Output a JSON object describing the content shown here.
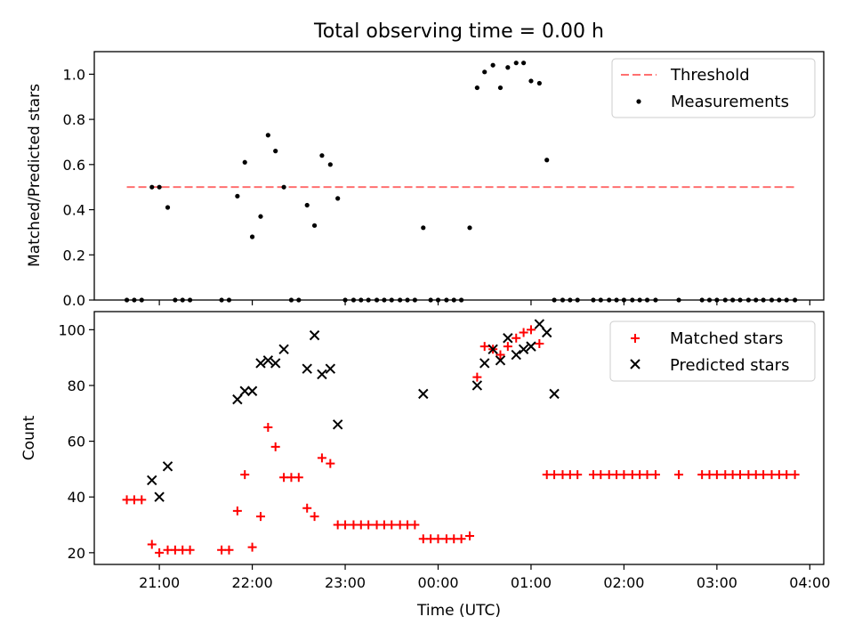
{
  "title": "Total observing time = 0.00 h",
  "xlabel": "Time (UTC)",
  "colors": {
    "threshold": "#ff7070",
    "measurement": "#000000",
    "matched": "#ff0000",
    "predicted": "#000000"
  },
  "chart_data": [
    {
      "type": "scatter",
      "panel": "top",
      "ylabel": "Matched/Predicted stars",
      "xlim": [
        20.3,
        28.15
      ],
      "ylim": [
        0,
        1.1
      ],
      "x_unit": "hours UTC since 20:00 of first night (24 = 00:00)",
      "yticks": [
        "0.0",
        "0.2",
        "0.4",
        "0.6",
        "0.8",
        "1.0"
      ],
      "legend": {
        "placement": "top-right",
        "entries": [
          "Threshold",
          "Measurements"
        ]
      },
      "threshold": {
        "name": "Threshold",
        "y": 0.5,
        "x_range": [
          20.65,
          27.85
        ]
      },
      "series": [
        {
          "name": "Measurements",
          "x": [
            20.65,
            20.73,
            20.81,
            20.92,
            21.0,
            21.09,
            21.17,
            21.25,
            21.33,
            21.67,
            21.75,
            21.84,
            21.92,
            22.0,
            22.09,
            22.17,
            22.25,
            22.34,
            22.42,
            22.5,
            22.59,
            22.67,
            22.75,
            22.84,
            22.92,
            23.0,
            23.09,
            23.17,
            23.25,
            23.34,
            23.42,
            23.5,
            23.59,
            23.67,
            23.75,
            23.84,
            23.92,
            24.0,
            24.09,
            24.17,
            24.25,
            24.34,
            24.42,
            24.5,
            24.59,
            24.67,
            24.75,
            24.84,
            24.92,
            25.0,
            25.09,
            25.17,
            25.25,
            25.34,
            25.42,
            25.5,
            25.67,
            25.75,
            25.84,
            25.92,
            26.0,
            26.09,
            26.17,
            26.25,
            26.34,
            26.59,
            26.84,
            26.92,
            27.0,
            27.09,
            27.17,
            27.25,
            27.34,
            27.42,
            27.5,
            27.59,
            27.67,
            27.75,
            27.84
          ],
          "y": [
            0,
            0,
            0,
            0.5,
            0.5,
            0.41,
            0,
            0,
            0,
            0,
            0,
            0.46,
            0.61,
            0.28,
            0.37,
            0.73,
            0.66,
            0.5,
            0,
            0,
            0.42,
            0.33,
            0.64,
            0.6,
            0.45,
            0,
            0,
            0,
            0,
            0,
            0,
            0,
            0,
            0,
            0,
            0.32,
            0,
            0,
            0,
            0,
            0,
            0.32,
            0.94,
            1.01,
            1.04,
            0.94,
            1.03,
            1.05,
            1.05,
            0.97,
            0.96,
            0.62,
            0,
            0,
            0,
            0,
            0,
            0,
            0,
            0,
            0,
            0,
            0,
            0,
            0,
            0,
            0,
            0,
            0,
            0,
            0,
            0,
            0,
            0,
            0,
            0,
            0,
            0,
            0
          ]
        }
      ]
    },
    {
      "type": "scatter",
      "panel": "bottom",
      "ylabel": "Count",
      "xlabel": "Time (UTC)",
      "xlim": [
        20.3,
        28.15
      ],
      "ylim": [
        15.8,
        106.5
      ],
      "yticks": [
        "20",
        "40",
        "60",
        "80",
        "100"
      ],
      "xticks": [
        "21:00",
        "22:00",
        "23:00",
        "00:00",
        "01:00",
        "02:00",
        "03:00",
        "04:00"
      ],
      "legend": {
        "placement": "top-right",
        "entries": [
          "Matched stars",
          "Predicted stars"
        ]
      },
      "series": [
        {
          "name": "Matched stars",
          "marker": "+",
          "x": [
            20.65,
            20.73,
            20.81,
            20.92,
            21.0,
            21.09,
            21.17,
            21.25,
            21.33,
            21.67,
            21.75,
            21.84,
            21.92,
            22.0,
            22.09,
            22.17,
            22.25,
            22.34,
            22.42,
            22.5,
            22.59,
            22.67,
            22.75,
            22.84,
            22.92,
            23.0,
            23.09,
            23.17,
            23.25,
            23.34,
            23.42,
            23.5,
            23.59,
            23.67,
            23.75,
            23.84,
            23.92,
            24.0,
            24.09,
            24.17,
            24.25,
            24.34,
            24.42,
            24.5,
            24.59,
            24.67,
            24.75,
            24.84,
            24.92,
            25.0,
            25.09,
            25.17,
            25.25,
            25.34,
            25.42,
            25.5,
            25.67,
            25.75,
            25.84,
            25.92,
            26.0,
            26.09,
            26.17,
            26.25,
            26.34,
            26.59,
            26.84,
            26.92,
            27.0,
            27.09,
            27.17,
            27.25,
            27.34,
            27.42,
            27.5,
            27.59,
            27.67,
            27.75,
            27.84
          ],
          "y": [
            39,
            39,
            39,
            23,
            20,
            21,
            21,
            21,
            21,
            21,
            21,
            35,
            48,
            22,
            33,
            65,
            58,
            47,
            47,
            47,
            36,
            33,
            54,
            52,
            30,
            30,
            30,
            30,
            30,
            30,
            30,
            30,
            30,
            30,
            30,
            25,
            25,
            25,
            25,
            25,
            25,
            26,
            83,
            94,
            93,
            91,
            94,
            97,
            99,
            100,
            95,
            48,
            48,
            48,
            48,
            48,
            48,
            48,
            48,
            48,
            48,
            48,
            48,
            48,
            48,
            48,
            48,
            48,
            48,
            48,
            48,
            48,
            48,
            48,
            48,
            48,
            48,
            48,
            48
          ]
        },
        {
          "name": "Predicted stars",
          "marker": "x",
          "x": [
            20.92,
            21.0,
            21.09,
            21.84,
            21.92,
            22.0,
            22.09,
            22.17,
            22.25,
            22.34,
            22.59,
            22.67,
            22.75,
            22.84,
            22.92,
            23.84,
            24.42,
            24.5,
            24.59,
            24.67,
            24.75,
            24.84,
            24.92,
            25.0,
            25.09,
            25.17,
            25.25
          ],
          "y": [
            46,
            40,
            51,
            75,
            78,
            78,
            88,
            89,
            88,
            93,
            86,
            98,
            84,
            86,
            66,
            77,
            80,
            88,
            93,
            89,
            97,
            91,
            93,
            94,
            102,
            99,
            77
          ]
        }
      ]
    }
  ]
}
